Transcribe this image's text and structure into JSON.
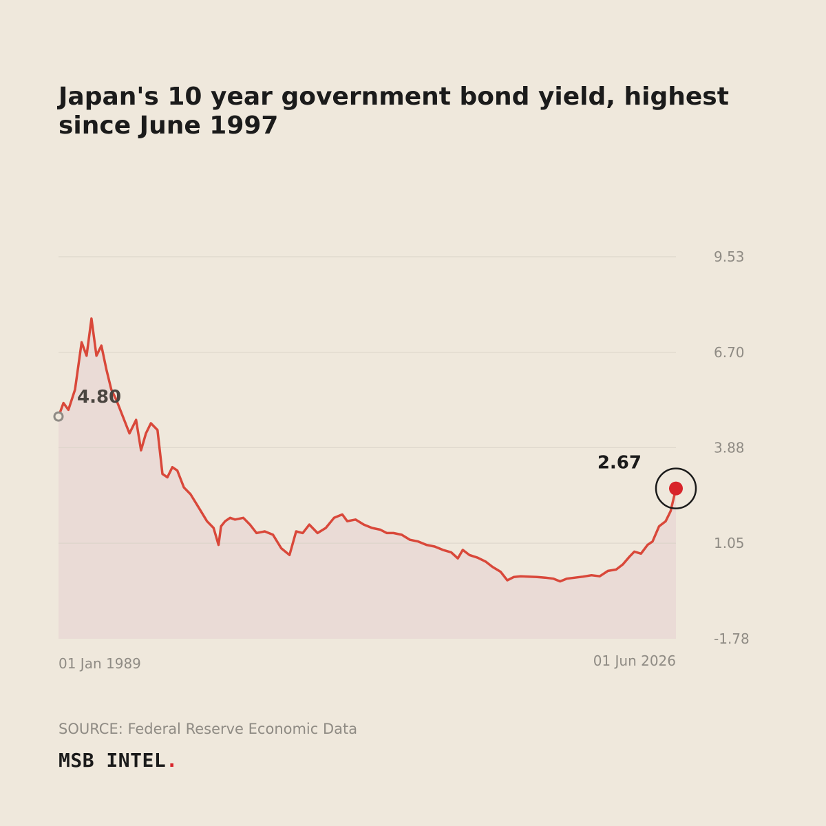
{
  "title": "Japan's 10 year government bond yield, highest since June 1997",
  "source": "SOURCE: Federal Reserve Economic Data",
  "brand": {
    "name": "MSB INTEL",
    "dot": "."
  },
  "colors": {
    "background": "#EFE8DC",
    "line": "#D9483A",
    "area": "#EADBD6",
    "grid": "#DAD3C8",
    "tick_text": "#8F8B84",
    "end_marker": "#D8242A",
    "start_label": "#4A4540",
    "end_label": "#1B1B1B"
  },
  "chart_data": {
    "type": "area",
    "y_ticks": [
      "9.53",
      "6.70",
      "3.88",
      "1.05",
      "-1.78"
    ],
    "ylim": [
      -1.78,
      9.53
    ],
    "x_labels": {
      "start": "01 Jan 1989",
      "end": "01 Jun 2026"
    },
    "xlim": [
      1989.0,
      2026.42
    ],
    "start_value_label": "4.80",
    "end_value_label": "2.67",
    "series": [
      {
        "x": [
          1989.0,
          1989.3,
          1989.6,
          1990.0,
          1990.4,
          1990.7,
          1991.0,
          1991.3,
          1991.6,
          1991.9,
          1992.2,
          1992.5,
          1992.9,
          1993.3,
          1993.7,
          1994.0,
          1994.3,
          1994.6,
          1995.0,
          1995.3,
          1995.6,
          1995.9,
          1996.2,
          1996.6,
          1997.0,
          1997.5,
          1998.0,
          1998.4,
          1998.7,
          1998.85,
          1999.1,
          1999.4,
          1999.7,
          2000.2,
          2000.6,
          2001.0,
          2001.5,
          2002.0,
          2002.5,
          2003.0,
          2003.4,
          2003.8,
          2004.2,
          2004.7,
          2005.2,
          2005.7,
          2006.2,
          2006.5,
          2007.0,
          2007.5,
          2008.0,
          2008.5,
          2008.9,
          2009.3,
          2009.8,
          2010.3,
          2010.8,
          2011.3,
          2011.8,
          2012.3,
          2012.8,
          2013.2,
          2013.5,
          2013.9,
          2014.4,
          2014.9,
          2015.3,
          2015.8,
          2016.2,
          2016.6,
          2017.0,
          2017.5,
          2018.0,
          2018.5,
          2019.0,
          2019.4,
          2019.8,
          2020.3,
          2020.8,
          2021.3,
          2021.8,
          2022.3,
          2022.8,
          2023.2,
          2023.6,
          2023.9,
          2024.3,
          2024.7,
          2025.0,
          2025.4,
          2025.8,
          2026.1,
          2026.42
        ],
        "values": [
          4.8,
          5.2,
          5.0,
          5.6,
          7.0,
          6.6,
          7.7,
          6.6,
          6.9,
          6.2,
          5.6,
          5.3,
          4.8,
          4.3,
          4.7,
          3.8,
          4.3,
          4.6,
          4.4,
          3.1,
          3.0,
          3.3,
          3.2,
          2.7,
          2.5,
          2.1,
          1.7,
          1.5,
          1.0,
          1.55,
          1.7,
          1.8,
          1.75,
          1.8,
          1.6,
          1.35,
          1.4,
          1.3,
          0.9,
          0.7,
          1.4,
          1.35,
          1.6,
          1.35,
          1.5,
          1.8,
          1.9,
          1.7,
          1.75,
          1.6,
          1.5,
          1.45,
          1.35,
          1.35,
          1.3,
          1.15,
          1.1,
          1.0,
          0.95,
          0.85,
          0.78,
          0.6,
          0.85,
          0.7,
          0.62,
          0.5,
          0.35,
          0.2,
          -0.05,
          0.05,
          0.07,
          0.06,
          0.05,
          0.03,
          0.0,
          -0.08,
          0.0,
          0.03,
          0.06,
          0.1,
          0.07,
          0.23,
          0.27,
          0.42,
          0.65,
          0.8,
          0.74,
          1.0,
          1.1,
          1.55,
          1.7,
          2.0,
          2.67
        ]
      }
    ]
  }
}
